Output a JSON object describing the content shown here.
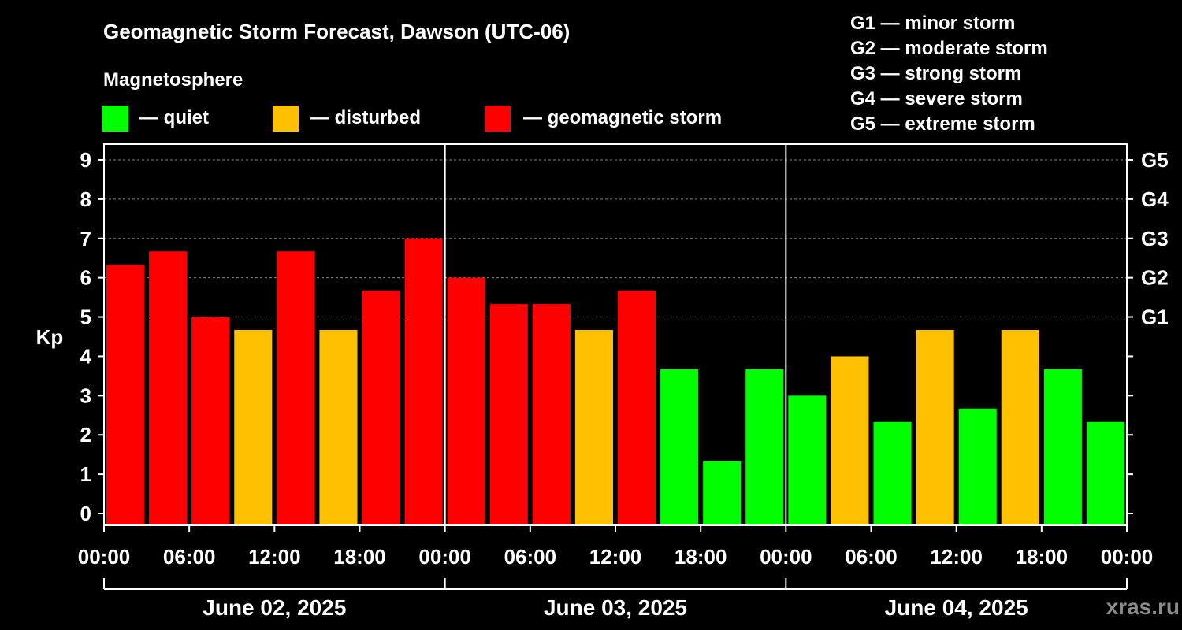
{
  "chart_data": {
    "type": "bar",
    "title": "Geomagnetic Storm Forecast, Dawson (UTC-06)",
    "ylabel": "Kp",
    "ylim": [
      -0.3,
      9.4
    ],
    "yticks": [
      "0",
      "1",
      "2",
      "3",
      "4",
      "5",
      "6",
      "7",
      "8",
      "9"
    ],
    "storm_levels": [
      {
        "label": "G1",
        "kp": 5
      },
      {
        "label": "G2",
        "kp": 6
      },
      {
        "label": "G3",
        "kp": 7
      },
      {
        "label": "G4",
        "kp": 8
      },
      {
        "label": "G5",
        "kp": 9
      }
    ],
    "x_tick_labels": [
      "00:00",
      "06:00",
      "12:00",
      "18:00",
      "00:00",
      "06:00",
      "12:00",
      "18:00",
      "00:00",
      "06:00",
      "12:00",
      "18:00",
      "00:00"
    ],
    "days": [
      "June 02, 2025",
      "June 03, 2025",
      "June 04, 2025"
    ],
    "values": [
      6.33,
      6.67,
      5.0,
      4.67,
      6.67,
      4.67,
      5.67,
      7.0,
      6.0,
      5.33,
      5.33,
      4.67,
      5.67,
      3.67,
      1.33,
      3.67,
      3.0,
      4.0,
      2.33,
      4.67,
      2.67,
      4.67,
      3.67,
      2.33
    ],
    "grid": true
  },
  "legend": {
    "heading": "Magnetosphere",
    "items": [
      {
        "label": "— quiet",
        "color": "#00ff00"
      },
      {
        "label": "— disturbed",
        "color": "#ffc000"
      },
      {
        "label": "— geomagnetic storm",
        "color": "#ff0000"
      }
    ]
  },
  "storm_scale": [
    "G1 — minor storm",
    "G2 — moderate storm",
    "G3 — strong storm",
    "G4 — severe storm",
    "G5 — extreme storm"
  ],
  "watermark": "xras.ru"
}
